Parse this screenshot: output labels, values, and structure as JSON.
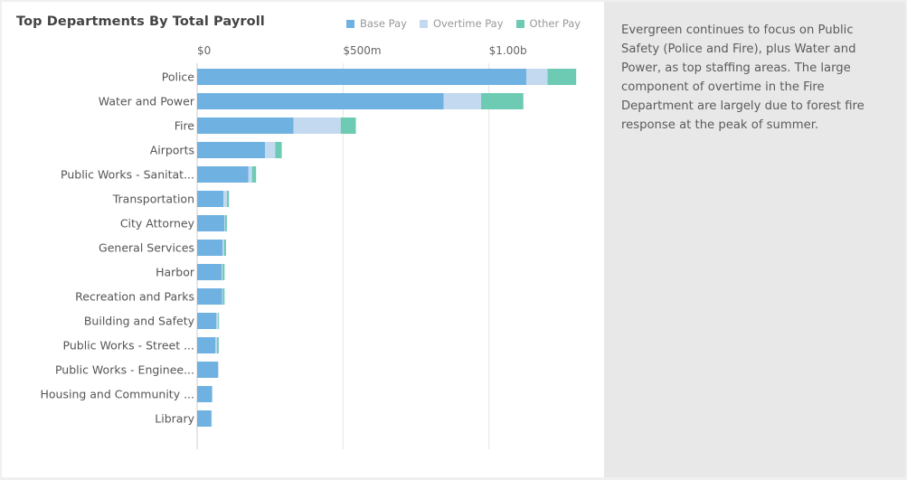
{
  "colors": {
    "base": "#6fb1e1",
    "overtime": "#c3d9f0",
    "other": "#6dcbb3"
  },
  "title": "Top Departments By Total Payroll",
  "legend": [
    {
      "label": "Base Pay",
      "color": "#6fb1e1"
    },
    {
      "label": "Overtime Pay",
      "color": "#c3d9f0"
    },
    {
      "label": "Other Pay",
      "color": "#6dcbb3"
    }
  ],
  "sidebar_text": "Evergreen continues to focus on Public Safety (Police and Fire), plus Water and Power, as top staffing areas. The large component of overtime in the Fire Department are largely due to forest fire response at the peak of summer.",
  "chart_data": {
    "type": "bar",
    "orientation": "horizontal",
    "stacked": true,
    "title": "Top Departments By Total Payroll",
    "x_ticks": [
      {
        "value": 0,
        "label": "$0"
      },
      {
        "value": 500,
        "label": "$500m"
      },
      {
        "value": 1000,
        "label": "$1.00b"
      }
    ],
    "xlim": [
      0,
      1345
    ],
    "units": "millions USD",
    "categories": [
      "Police",
      "Water and Power",
      "Fire",
      "Airports",
      "Public Works - Sanitat...",
      "Transportation",
      "City Attorney",
      "General Services",
      "Harbor",
      "Recreation and Parks",
      "Building and Safety",
      "Public Works - Street ...",
      "Public Works - Enginee...",
      "Housing and Community ...",
      "Library"
    ],
    "series": [
      {
        "name": "Base Pay",
        "values": [
          1128,
          845,
          330,
          233,
          176,
          90,
          93,
          87,
          84,
          86,
          66,
          63,
          72,
          51,
          49
        ]
      },
      {
        "name": "Overtime Pay",
        "values": [
          73,
          128,
          162,
          35,
          12,
          12,
          3,
          5,
          3,
          2,
          6,
          5,
          1,
          1,
          1
        ]
      },
      {
        "name": "Other Pay",
        "values": [
          98,
          145,
          52,
          22,
          14,
          7,
          6,
          7,
          7,
          6,
          3,
          6,
          0,
          0,
          0
        ]
      }
    ]
  }
}
